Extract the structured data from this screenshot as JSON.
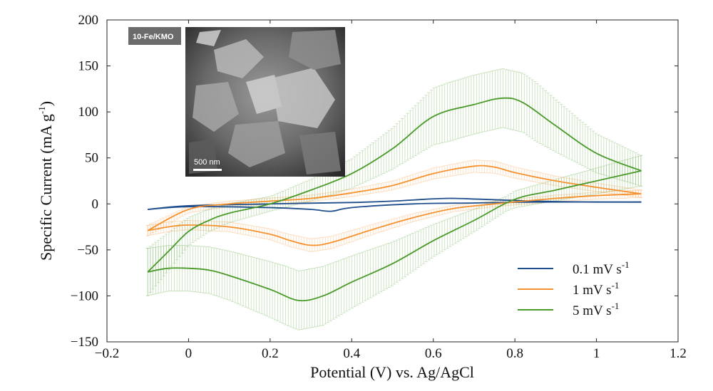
{
  "chart_data": {
    "type": "line",
    "title": "",
    "xlabel": "Potential (V) vs. Ag/AgCl",
    "ylabel_main": "Specific Current (mA g",
    "ylabel_sup": "-1",
    "ylabel_close": ")",
    "xlim": [
      -0.2,
      1.2
    ],
    "ylim": [
      -150,
      200
    ],
    "xticks": [
      -0.2,
      0,
      0.2,
      0.4,
      0.6,
      0.8,
      1,
      1.2
    ],
    "xtick_labels": [
      "−0.2",
      "0",
      "0.2",
      "0.4",
      "0.6",
      "0.8",
      "1",
      "1.2"
    ],
    "yticks": [
      -150,
      -100,
      -50,
      0,
      50,
      100,
      150,
      200
    ],
    "ytick_labels": [
      "−150",
      "−100",
      "−50",
      "0",
      "50",
      "100",
      "150",
      "200"
    ],
    "legend_position": "bottom-right",
    "series": [
      {
        "name": "0.1 mV s",
        "sup": "-1",
        "color": "#1f4e8c",
        "error_band": 0,
        "upper": [
          [
            -0.1,
            -6
          ],
          [
            0,
            -2
          ],
          [
            0.2,
            0
          ],
          [
            0.4,
            1.5
          ],
          [
            0.5,
            3
          ],
          [
            0.58,
            5
          ],
          [
            0.64,
            6
          ],
          [
            0.72,
            5
          ],
          [
            0.85,
            3
          ],
          [
            1.0,
            2
          ],
          [
            1.11,
            2
          ]
        ],
        "lower": [
          [
            -0.1,
            -6
          ],
          [
            0,
            -3
          ],
          [
            0.2,
            -4
          ],
          [
            0.3,
            -6
          ],
          [
            0.35,
            -8
          ],
          [
            0.4,
            -4
          ],
          [
            0.55,
            0
          ],
          [
            0.7,
            1
          ],
          [
            0.85,
            2
          ],
          [
            1.11,
            2
          ]
        ]
      },
      {
        "name": "1 mV s",
        "sup": "-1",
        "color": "#f5922f",
        "error_band": 12,
        "upper": [
          [
            -0.1,
            -29
          ],
          [
            0,
            -6
          ],
          [
            0.1,
            0
          ],
          [
            0.2,
            3
          ],
          [
            0.3,
            6
          ],
          [
            0.4,
            12
          ],
          [
            0.5,
            20
          ],
          [
            0.6,
            33
          ],
          [
            0.7,
            41
          ],
          [
            0.75,
            40
          ],
          [
            0.8,
            34
          ],
          [
            0.9,
            25
          ],
          [
            1.0,
            18
          ],
          [
            1.11,
            11
          ]
        ],
        "lower": [
          [
            -0.1,
            -29
          ],
          [
            -0.05,
            -25
          ],
          [
            0,
            -23
          ],
          [
            0.1,
            -25
          ],
          [
            0.2,
            -33
          ],
          [
            0.25,
            -40
          ],
          [
            0.3,
            -45
          ],
          [
            0.35,
            -42
          ],
          [
            0.45,
            -28
          ],
          [
            0.55,
            -15
          ],
          [
            0.65,
            -5
          ],
          [
            0.75,
            0
          ],
          [
            0.9,
            6
          ],
          [
            1.0,
            9
          ],
          [
            1.11,
            11
          ]
        ]
      },
      {
        "name": "5 mV s",
        "sup": "-1",
        "color": "#4a9a2a",
        "error_band": 32,
        "upper": [
          [
            -0.1,
            -74
          ],
          [
            -0.05,
            -52
          ],
          [
            0,
            -30
          ],
          [
            0.05,
            -18
          ],
          [
            0.1,
            -10
          ],
          [
            0.2,
            0
          ],
          [
            0.3,
            15
          ],
          [
            0.4,
            33
          ],
          [
            0.5,
            60
          ],
          [
            0.6,
            95
          ],
          [
            0.7,
            108
          ],
          [
            0.77,
            115
          ],
          [
            0.82,
            110
          ],
          [
            0.9,
            85
          ],
          [
            1.0,
            55
          ],
          [
            1.11,
            36
          ]
        ],
        "lower": [
          [
            -0.1,
            -74
          ],
          [
            -0.05,
            -70
          ],
          [
            0,
            -70
          ],
          [
            0.05,
            -72
          ],
          [
            0.1,
            -78
          ],
          [
            0.2,
            -93
          ],
          [
            0.27,
            -105
          ],
          [
            0.33,
            -100
          ],
          [
            0.4,
            -85
          ],
          [
            0.5,
            -65
          ],
          [
            0.6,
            -40
          ],
          [
            0.7,
            -18
          ],
          [
            0.8,
            5
          ],
          [
            0.9,
            15
          ],
          [
            1.0,
            25
          ],
          [
            1.11,
            36
          ]
        ]
      }
    ],
    "inset": {
      "label": "10-Fe/KMO",
      "scale_bar": "500 nm"
    }
  }
}
